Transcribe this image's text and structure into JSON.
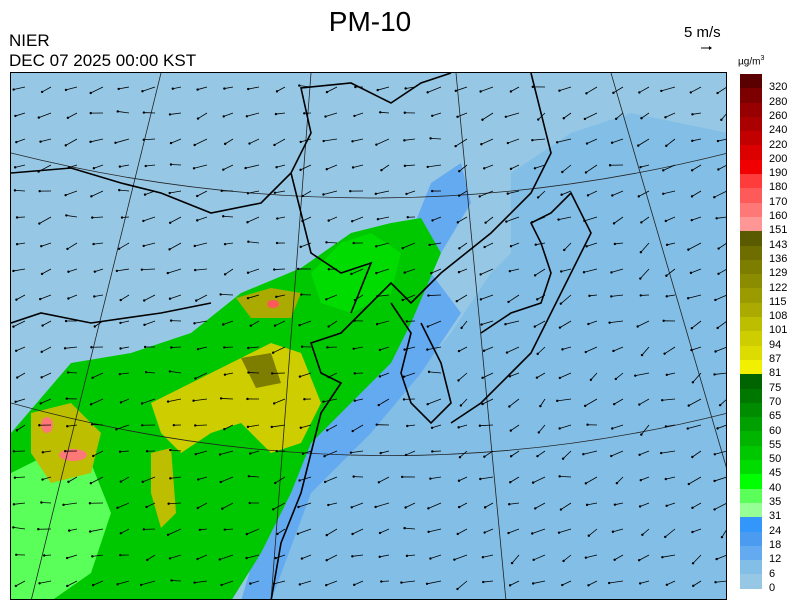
{
  "title": "PM-10",
  "source": "NIER",
  "datetime": "DEC 07 2025 00:00 KST",
  "vector_scale": {
    "label": "5 m/s",
    "icon": "reference-arrow-icon"
  },
  "colorbar": {
    "unit": "µg/m",
    "unit_sup": "3",
    "labels": [
      "320",
      "280",
      "260",
      "240",
      "220",
      "200",
      "190",
      "180",
      "170",
      "160",
      "151",
      "143",
      "136",
      "129",
      "122",
      "115",
      "108",
      "101",
      "94",
      "87",
      "81",
      "75",
      "70",
      "65",
      "60",
      "55",
      "50",
      "45",
      "40",
      "35",
      "31",
      "24",
      "18",
      "12",
      "6",
      "0"
    ],
    "colors": [
      "#5a0000",
      "#7d0000",
      "#960000",
      "#aa0000",
      "#c30000",
      "#dc0000",
      "#f00000",
      "#ff3c3c",
      "#ff5a5a",
      "#ff7878",
      "#ff9696",
      "#5a5a00",
      "#6e6e00",
      "#7d7d00",
      "#8c8c00",
      "#9b9b00",
      "#aaaa00",
      "#bebe00",
      "#cdcd00",
      "#dcdc00",
      "#f0f000",
      "#006400",
      "#007800",
      "#008c00",
      "#00a000",
      "#00b400",
      "#00c800",
      "#00dc00",
      "#00ff00",
      "#5aff5a",
      "#96ff96",
      "#3296fa",
      "#4b9bf0",
      "#64aaf0",
      "#82bee6",
      "#96c8e6"
    ]
  }
}
